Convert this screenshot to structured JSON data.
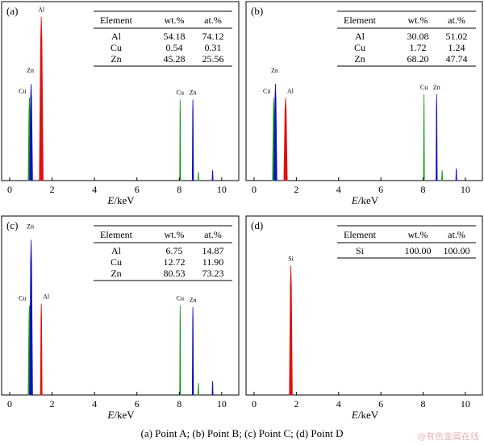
{
  "caption": "(a)  Point A;  (b)  Point B;  (c)  Point C;  (d) Point D",
  "watermark": "@有色金属在线",
  "colors": {
    "Al": "#e01010",
    "Zn": "#1010c0",
    "Cu": "#1a9a1a",
    "Si": "#e01010",
    "axis": "#000000"
  },
  "chart_data": [
    {
      "type": "bar",
      "panel_label": "(a)",
      "xlabel": "E/keV",
      "xlim": [
        0,
        10.5
      ],
      "xticks": [
        0,
        2,
        4,
        6,
        8,
        10
      ],
      "ylim": [
        0,
        1
      ],
      "table": {
        "headers": [
          "Element",
          "wt.%",
          "at.%"
        ],
        "rows": [
          [
            "Al",
            "54.18",
            "74.12"
          ],
          [
            "Cu",
            "0.54",
            "0.31"
          ],
          [
            "Zn",
            "45.28",
            "25.56"
          ]
        ]
      },
      "peaks": [
        {
          "element": "Cu",
          "energy": 0.93,
          "height": 0.48,
          "width": 0.06,
          "label": "Cu"
        },
        {
          "element": "Zn",
          "energy": 1.01,
          "height": 0.56,
          "width": 0.07,
          "label": "Zn"
        },
        {
          "element": "Al",
          "energy": 1.49,
          "height": 0.95,
          "width": 0.09,
          "label": "Al"
        },
        {
          "element": "Cu",
          "energy": 8.04,
          "height": 0.47,
          "width": 0.02,
          "label": "Cu"
        },
        {
          "element": "Zn",
          "energy": 8.64,
          "height": 0.47,
          "width": 0.03,
          "label": "Zn"
        },
        {
          "element": "Cu",
          "energy": 8.9,
          "height": 0.05,
          "width": 0.015,
          "label": ""
        },
        {
          "element": "Zn",
          "energy": 9.57,
          "height": 0.06,
          "width": 0.015,
          "label": ""
        }
      ]
    },
    {
      "type": "bar",
      "panel_label": "(b)",
      "xlabel": "E/keV",
      "xlim": [
        0,
        10.5
      ],
      "xticks": [
        0,
        2,
        4,
        6,
        8,
        10
      ],
      "ylim": [
        0,
        1
      ],
      "table": {
        "headers": [
          "Element",
          "wt.%",
          "at.%"
        ],
        "rows": [
          [
            "Al",
            "30.08",
            "51.02"
          ],
          [
            "Cu",
            "1.72",
            "1.24"
          ],
          [
            "Zn",
            "68.20",
            "47.74"
          ]
        ]
      },
      "peaks": [
        {
          "element": "Cu",
          "energy": 0.93,
          "height": 0.48,
          "width": 0.06,
          "label": "Cu"
        },
        {
          "element": "Zn",
          "energy": 1.01,
          "height": 0.56,
          "width": 0.07,
          "label": "Zn"
        },
        {
          "element": "Al",
          "energy": 1.49,
          "height": 0.48,
          "width": 0.08,
          "label": "Al"
        },
        {
          "element": "Cu",
          "energy": 8.04,
          "height": 0.5,
          "width": 0.02,
          "label": "Cu"
        },
        {
          "element": "Zn",
          "energy": 8.64,
          "height": 0.5,
          "width": 0.03,
          "label": "Zn"
        },
        {
          "element": "Cu",
          "energy": 8.9,
          "height": 0.06,
          "width": 0.015,
          "label": ""
        },
        {
          "element": "Zn",
          "energy": 9.57,
          "height": 0.07,
          "width": 0.015,
          "label": ""
        }
      ]
    },
    {
      "type": "bar",
      "panel_label": "(c)",
      "xlabel": "E/keV",
      "xlim": [
        0,
        10.5
      ],
      "xticks": [
        0,
        2,
        4,
        6,
        8,
        10
      ],
      "ylim": [
        0,
        1
      ],
      "table": {
        "headers": [
          "Element",
          "wt.%",
          "at.%"
        ],
        "rows": [
          [
            "Al",
            "6.75",
            "14.87"
          ],
          [
            "Cu",
            "12.72",
            "11.90"
          ],
          [
            "Zn",
            "80.53",
            "73.23"
          ]
        ]
      },
      "peaks": [
        {
          "element": "Cu",
          "energy": 0.93,
          "height": 0.52,
          "width": 0.06,
          "label": "Cu"
        },
        {
          "element": "Zn",
          "energy": 1.01,
          "height": 0.9,
          "width": 0.07,
          "label": "Zn"
        },
        {
          "element": "Al",
          "energy": 1.49,
          "height": 0.53,
          "width": 0.04,
          "label": "Al"
        },
        {
          "element": "Cu",
          "energy": 8.04,
          "height": 0.52,
          "width": 0.02,
          "label": "Cu"
        },
        {
          "element": "Zn",
          "energy": 8.64,
          "height": 0.51,
          "width": 0.03,
          "label": "Zn"
        },
        {
          "element": "Cu",
          "energy": 8.9,
          "height": 0.07,
          "width": 0.015,
          "label": ""
        },
        {
          "element": "Zn",
          "energy": 9.57,
          "height": 0.08,
          "width": 0.015,
          "label": ""
        }
      ]
    },
    {
      "type": "bar",
      "panel_label": "(d)",
      "xlabel": "E/keV",
      "xlim": [
        0,
        10.5
      ],
      "xticks": [
        0,
        2,
        4,
        6,
        8,
        10
      ],
      "ylim": [
        0,
        1
      ],
      "table": {
        "headers": [
          "Element",
          "wt.%",
          "at.%"
        ],
        "rows": [
          [
            "Si",
            "100.00",
            "100.00"
          ]
        ]
      },
      "peaks": [
        {
          "element": "Si",
          "energy": 1.74,
          "height": 0.75,
          "width": 0.07,
          "label": "Si"
        }
      ]
    }
  ]
}
